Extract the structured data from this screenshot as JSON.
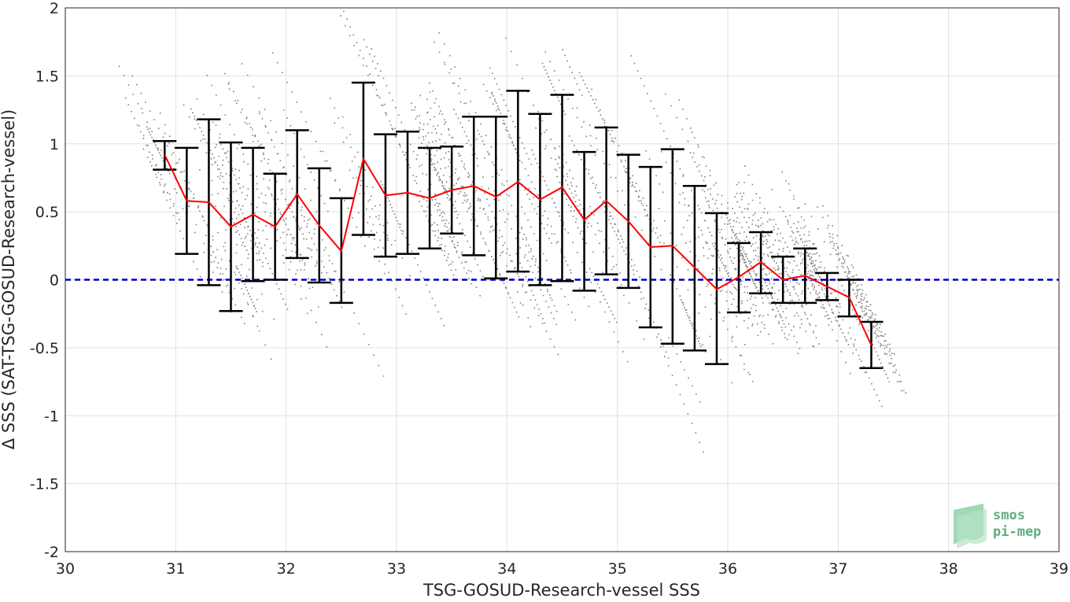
{
  "chart_data": {
    "type": "line",
    "xlabel": "TSG-GOSUD-Research-vessel SSS",
    "ylabel": "Δ SSS (SAT-TSG-GOSUD-Research-vessel)",
    "xlim": [
      30,
      39
    ],
    "ylim": [
      -2,
      2
    ],
    "x_ticks": [
      30,
      31,
      32,
      33,
      34,
      35,
      36,
      37,
      38,
      39
    ],
    "y_ticks": [
      2,
      1.5,
      1,
      0.5,
      0,
      -0.5,
      -1,
      -1.5,
      -2
    ],
    "y_tick_labels": [
      "2",
      "1.5",
      "1",
      "0.5",
      "0",
      "-0.5",
      "-1",
      "-1.5",
      "-2"
    ],
    "grid": true,
    "zero_line": {
      "y": 0,
      "color": "#0000cc",
      "style": "dashed"
    },
    "mean_color": "#ff0000",
    "errorbar_color": "#000000",
    "scatter_color": "#808080",
    "series": [
      {
        "x": [
          30.9,
          31.1,
          31.3,
          31.5,
          31.7,
          31.9,
          32.1,
          32.3,
          32.5,
          32.7,
          32.9,
          33.1,
          33.3,
          33.5,
          33.7,
          33.9,
          34.1,
          34.3,
          34.5,
          34.7,
          34.9,
          35.1,
          35.3,
          35.5,
          35.7,
          35.9,
          36.1,
          36.3,
          36.5,
          36.7,
          36.9,
          37.1,
          37.3
        ],
        "mean": [
          0.92,
          0.58,
          0.57,
          0.39,
          0.48,
          0.39,
          0.63,
          0.4,
          0.21,
          0.89,
          0.62,
          0.64,
          0.6,
          0.66,
          0.69,
          0.61,
          0.72,
          0.59,
          0.68,
          0.44,
          0.58,
          0.43,
          0.24,
          0.25,
          0.09,
          -0.07,
          0.02,
          0.13,
          0.0,
          0.03,
          -0.05,
          -0.13,
          -0.48
        ],
        "upper": [
          1.02,
          0.97,
          1.18,
          1.01,
          0.97,
          0.78,
          1.1,
          0.82,
          0.6,
          1.45,
          1.07,
          1.09,
          0.97,
          0.98,
          1.2,
          1.2,
          1.39,
          1.22,
          1.36,
          0.94,
          1.12,
          0.92,
          0.83,
          0.96,
          0.69,
          0.49,
          0.27,
          0.35,
          0.17,
          0.23,
          0.05,
          0.0,
          -0.31
        ],
        "lower": [
          0.81,
          0.19,
          -0.04,
          -0.23,
          -0.01,
          0.0,
          0.16,
          -0.02,
          -0.17,
          0.33,
          0.17,
          0.19,
          0.23,
          0.34,
          0.18,
          0.01,
          0.06,
          -0.04,
          -0.01,
          -0.08,
          0.04,
          -0.06,
          -0.35,
          -0.47,
          -0.52,
          -0.62,
          -0.24,
          -0.1,
          -0.17,
          -0.17,
          -0.15,
          -0.27,
          -0.65
        ]
      }
    ]
  },
  "logo": {
    "line1": "smos",
    "line2": "pi-mep"
  }
}
